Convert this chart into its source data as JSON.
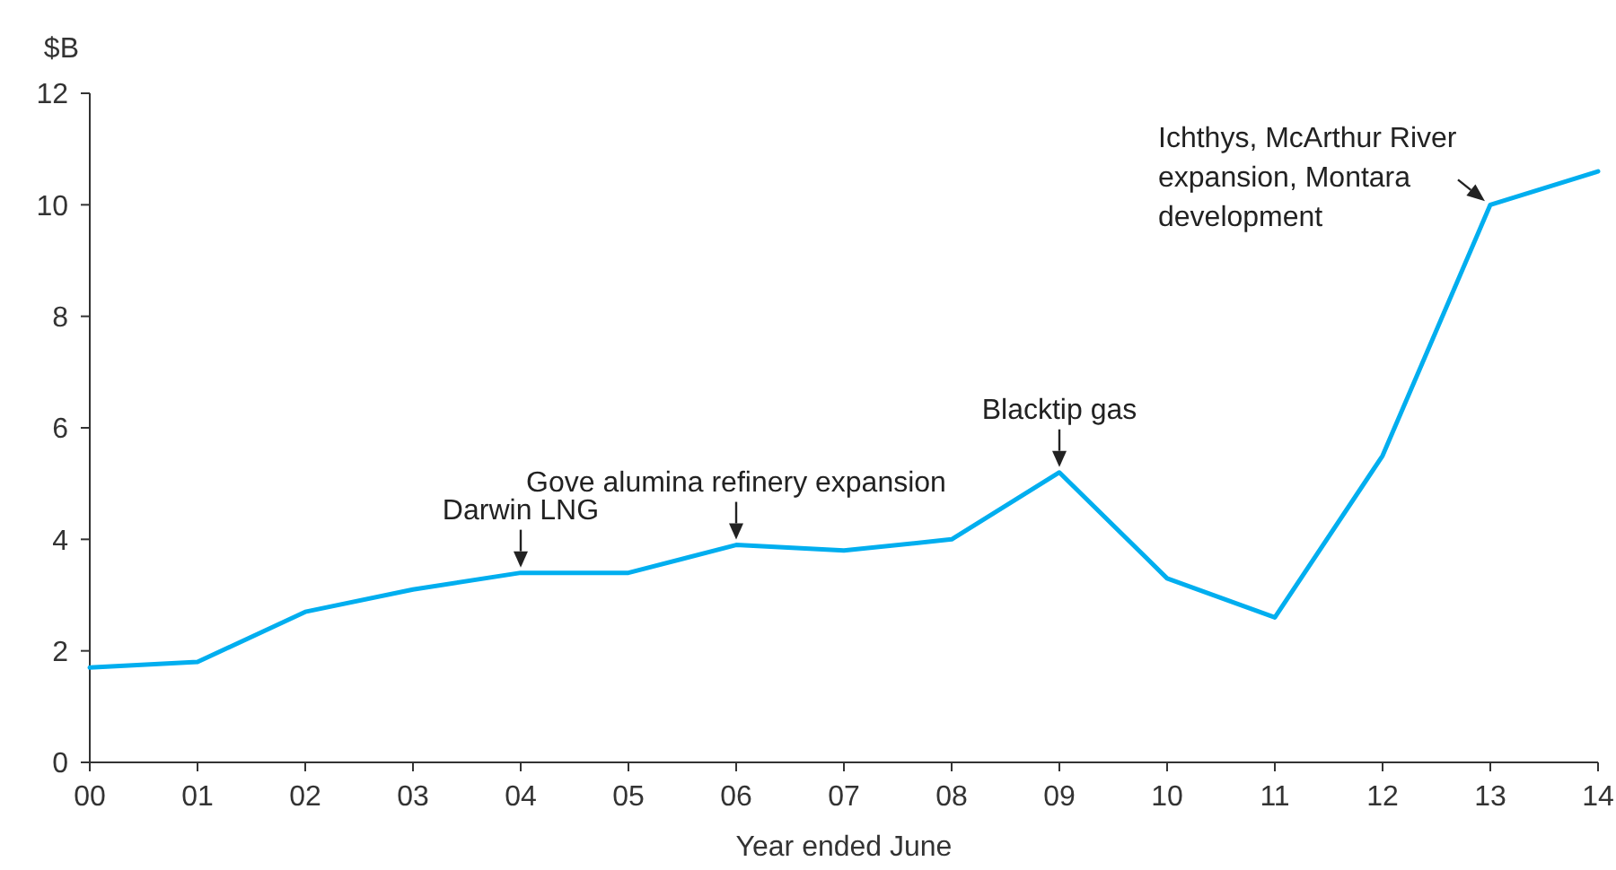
{
  "chart_data": {
    "type": "line",
    "ylabel": "$B",
    "xlabel": "Year ended June",
    "categories": [
      "00",
      "01",
      "02",
      "03",
      "04",
      "05",
      "06",
      "07",
      "08",
      "09",
      "10",
      "11",
      "12",
      "13",
      "14"
    ],
    "series": [
      {
        "color": "#00aeef",
        "values": [
          1.7,
          1.8,
          2.7,
          3.1,
          3.4,
          3.4,
          3.9,
          3.8,
          4.0,
          5.2,
          3.3,
          2.6,
          5.5,
          10.0,
          10.6
        ]
      }
    ],
    "ylim": [
      0,
      12
    ],
    "yticks": [
      0,
      2,
      4,
      6,
      8,
      10,
      12
    ],
    "grid": false,
    "marker": "none",
    "line_style": "solid",
    "annotations": [
      {
        "text": "Darwin LNG",
        "x": "04",
        "y": 3.4
      },
      {
        "text": "Gove alumina refinery expansion",
        "x": "06",
        "y": 3.9
      },
      {
        "text": "Blacktip gas",
        "x": "09",
        "y": 5.2
      },
      {
        "text": "Ichthys, McArthur River expansion, Montara development",
        "x": "13",
        "y": 10.0
      }
    ]
  }
}
